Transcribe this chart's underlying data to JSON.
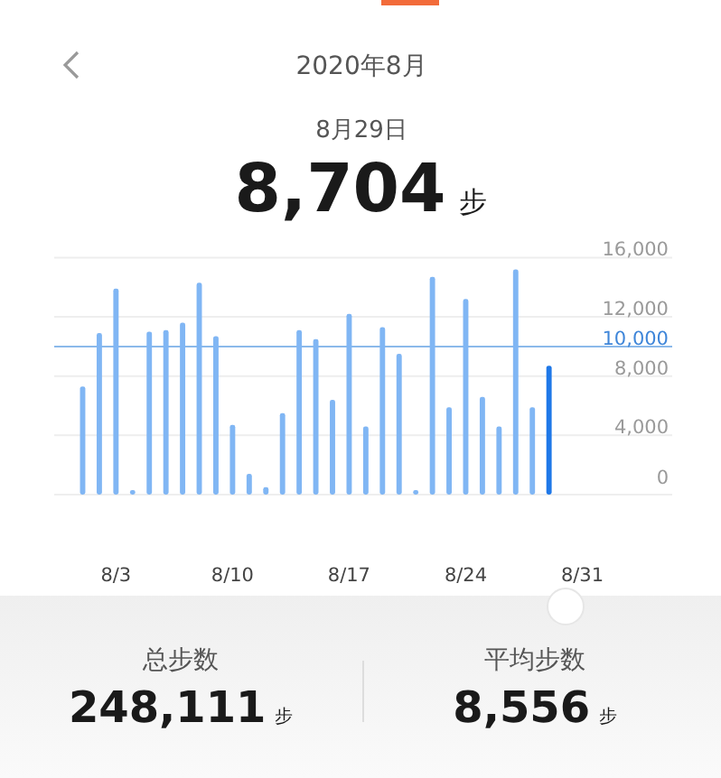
{
  "chart_data": {
    "type": "bar",
    "title": "2020年8月",
    "subtitle": "8月29日",
    "annotations": [
      "8,704 步",
      "总步数",
      "248,111 步",
      "平均步数",
      "8,556 步"
    ],
    "categories": [
      null,
      null,
      "8/3",
      null,
      null,
      null,
      null,
      null,
      null,
      "8/10",
      null,
      null,
      null,
      null,
      null,
      null,
      "8/17",
      null,
      null,
      null,
      null,
      null,
      null,
      "8/24",
      null,
      null,
      null,
      null,
      null,
      null,
      "8/31"
    ],
    "values": [
      7300,
      10900,
      13900,
      300,
      11000,
      11100,
      11600,
      14300,
      10700,
      4700,
      1400,
      500,
      5500,
      11100,
      10500,
      6400,
      12200,
      4600,
      11300,
      9500,
      300,
      14700,
      5900,
      13200,
      6600,
      4600,
      15200,
      5900,
      8704,
      null,
      null
    ],
    "colors": [
      "#80b6f4",
      "#80b6f4",
      "#80b6f4",
      "#80b6f4",
      "#80b6f4",
      "#80b6f4",
      "#80b6f4",
      "#80b6f4",
      "#80b6f4",
      "#80b6f4",
      "#80b6f4",
      "#80b6f4",
      "#80b6f4",
      "#80b6f4",
      "#80b6f4",
      "#80b6f4",
      "#80b6f4",
      "#80b6f4",
      "#80b6f4",
      "#80b6f4",
      "#80b6f4",
      "#80b6f4",
      "#80b6f4",
      "#80b6f4",
      "#80b6f4",
      "#80b6f4",
      "#80b6f4",
      "#80b6f4",
      "#1f78e8",
      "#80b6f4",
      "#80b6f4"
    ],
    "ylim": [
      0,
      16000
    ],
    "yticks": [
      {
        "value": 0,
        "label": "0"
      },
      {
        "value": 4000,
        "label": "4,000"
      },
      {
        "value": 8000,
        "label": "8,000"
      },
      {
        "value": 12000,
        "label": "12,000"
      },
      {
        "value": 16000,
        "label": "16,000"
      }
    ],
    "ref_lines": [
      {
        "axis": "y",
        "value": 10000,
        "label": "10,000",
        "color": "#8bb9ea"
      }
    ],
    "grid": "y"
  }
}
